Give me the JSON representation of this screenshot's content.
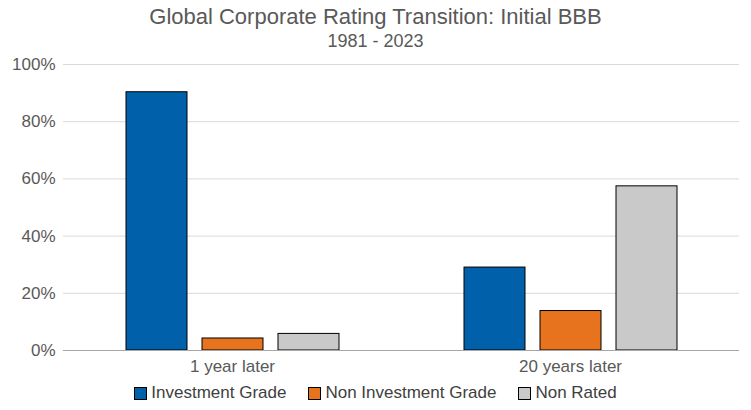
{
  "chart_data": {
    "type": "bar",
    "title": "Global Corporate Rating Transition: Initial BBB",
    "subtitle": "1981 - 2023",
    "categories": [
      "1 year later",
      "20 years later"
    ],
    "series": [
      {
        "name": "Investment Grade",
        "color": "#0060A9",
        "values": [
          90.3,
          29
        ]
      },
      {
        "name": "Non Investment Grade",
        "color": "#E8731E",
        "values": [
          4.2,
          13.8
        ]
      },
      {
        "name": "Non Rated",
        "color": "#C9C9C9",
        "values": [
          5.8,
          57.4
        ]
      }
    ],
    "ylim": [
      0,
      100
    ],
    "yticks": [
      {
        "value": 0,
        "label": "0%"
      },
      {
        "value": 20,
        "label": "20%"
      },
      {
        "value": 40,
        "label": "40%"
      },
      {
        "value": 60,
        "label": "60%"
      },
      {
        "value": 80,
        "label": "80%"
      },
      {
        "value": 100,
        "label": "100%"
      }
    ],
    "grid": true,
    "legend": "bottom"
  }
}
